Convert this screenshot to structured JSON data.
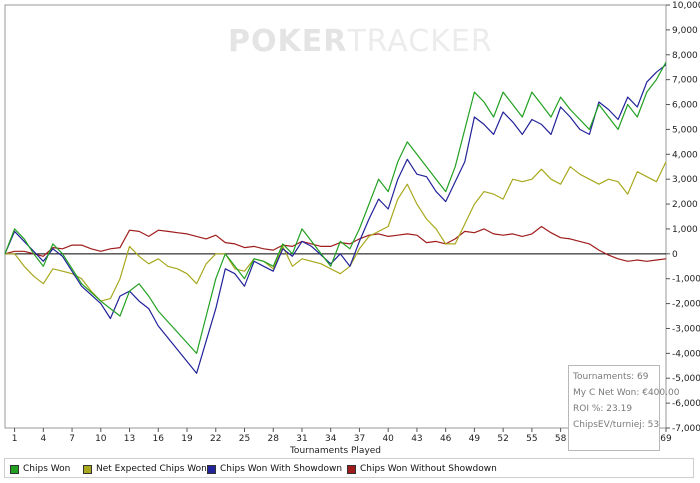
{
  "watermark": {
    "bold": "POKER",
    "light": "TRACKER"
  },
  "stats": {
    "tournaments": "Tournaments: 69",
    "net_won": "My C Net Won: €400.00",
    "roi": "ROI %: 23.19",
    "chipsev": "ChipsEV/turniej: 53"
  },
  "legend": {
    "chips_won": "Chips Won",
    "net_expected": "Net Expected Chips Won",
    "with_showdown": "Chips Won With Showdown",
    "without_showdown": "Chips Won Without Showdown"
  },
  "colors": {
    "chips_won": "#22a022",
    "net_expected": "#a8a81e",
    "with_showdown": "#22229a",
    "without_showdown": "#a01c1c"
  },
  "chart_data": {
    "type": "line",
    "xlabel": "Tournaments Played",
    "ylabel": "",
    "xlim": [
      0,
      69
    ],
    "ylim": [
      -7000,
      10000
    ],
    "x_ticks": [
      1,
      4,
      7,
      10,
      13,
      16,
      19,
      22,
      25,
      28,
      31,
      34,
      37,
      40,
      43,
      46,
      49,
      52,
      55,
      58,
      61,
      64,
      67,
      69
    ],
    "y_ticks": [
      -7000,
      -6000,
      -5000,
      -4000,
      -3000,
      -2000,
      -1000,
      0,
      1000,
      2000,
      3000,
      4000,
      5000,
      6000,
      7000,
      8000,
      9000,
      10000
    ],
    "y_tick_labels": [
      "-7,000",
      "-6,000",
      "-5,000",
      "-4,000",
      "-3,000",
      "-2,000",
      "-1,000",
      "0",
      "1,000",
      "2,000",
      "3,000",
      "4,000",
      "5,000",
      "6,000",
      "7,000",
      "8,000",
      "9,000",
      "10,000"
    ],
    "grid": false,
    "legend_position": "bottom",
    "series": [
      {
        "name": "Chips Won",
        "x": [
          0,
          1,
          2,
          3,
          4,
          5,
          6,
          8,
          10,
          11,
          12,
          13,
          14,
          15,
          16,
          20,
          21,
          22,
          23,
          24,
          25,
          26,
          27,
          28,
          29,
          30,
          31,
          32,
          34,
          35,
          36,
          37,
          38,
          39,
          40,
          41,
          42,
          43,
          44,
          45,
          46,
          47,
          48,
          49,
          50,
          51,
          52,
          53,
          54,
          55,
          56,
          57,
          58,
          59,
          60,
          61,
          62,
          63,
          64,
          65,
          66,
          67,
          68,
          69
        ],
        "y": [
          0,
          1000,
          600,
          0,
          -500,
          400,
          0,
          -1200,
          -1900,
          -2200,
          -2500,
          -1500,
          -1200,
          -1700,
          -2300,
          -4000,
          -2500,
          -1000,
          0,
          -500,
          -1000,
          -200,
          -300,
          -500,
          400,
          0,
          1000,
          500,
          -500,
          500,
          200,
          1000,
          2000,
          3000,
          2500,
          3700,
          4500,
          4000,
          3500,
          3000,
          2500,
          3500,
          5000,
          6500,
          6100,
          5500,
          6500,
          6000,
          5500,
          6500,
          6000,
          5500,
          6300,
          5800,
          5400,
          5000,
          6000,
          5500,
          5000,
          6000,
          5500,
          6500,
          7000,
          7700
        ]
      },
      {
        "name": "Net Expected Chips Won",
        "x": [
          0,
          1,
          2,
          3,
          4,
          5,
          6,
          7,
          8,
          9,
          10,
          11,
          12,
          13,
          14,
          15,
          16,
          17,
          18,
          19,
          20,
          21,
          22,
          23,
          24,
          25,
          26,
          27,
          28,
          29,
          30,
          31,
          32,
          33,
          34,
          35,
          36,
          37,
          38,
          39,
          40,
          41,
          42,
          43,
          44,
          45,
          46,
          47,
          48,
          49,
          50,
          51,
          52,
          53,
          54,
          55,
          56,
          57,
          58,
          59,
          60,
          61,
          62,
          63,
          64,
          65,
          66,
          67,
          68,
          69
        ],
        "y": [
          0,
          0,
          -500,
          -900,
          -1200,
          -600,
          -700,
          -800,
          -1000,
          -1500,
          -1900,
          -1800,
          -1000,
          300,
          -100,
          -400,
          -200,
          -500,
          -600,
          -800,
          -1200,
          -400,
          0,
          0,
          -600,
          -700,
          -200,
          -300,
          -600,
          300,
          -500,
          -200,
          -300,
          -400,
          -600,
          -800,
          -500,
          200,
          700,
          900,
          1100,
          2200,
          2800,
          2000,
          1400,
          1000,
          400,
          400,
          1200,
          2000,
          2500,
          2400,
          2200,
          3000,
          2900,
          3000,
          3400,
          3000,
          2800,
          3500,
          3200,
          3000,
          2800,
          3000,
          2900,
          2400,
          3300,
          3100,
          2900,
          3700
        ]
      },
      {
        "name": "Chips Won With Showdown",
        "x": [
          0,
          1,
          2,
          3,
          4,
          5,
          6,
          8,
          10,
          11,
          12,
          13,
          14,
          15,
          16,
          20,
          21,
          22,
          23,
          24,
          25,
          26,
          27,
          28,
          29,
          30,
          31,
          32,
          34,
          35,
          36,
          37,
          38,
          39,
          40,
          41,
          42,
          43,
          44,
          45,
          46,
          47,
          48,
          49,
          50,
          51,
          52,
          53,
          54,
          55,
          56,
          57,
          58,
          59,
          60,
          61,
          62,
          63,
          64,
          65,
          66,
          67,
          68,
          69
        ],
        "y": [
          0,
          900,
          500,
          100,
          -300,
          200,
          -100,
          -1300,
          -2000,
          -2600,
          -1700,
          -1500,
          -1900,
          -2200,
          -2900,
          -4800,
          -3500,
          -2200,
          -600,
          -800,
          -1300,
          -300,
          -500,
          -700,
          200,
          -100,
          500,
          300,
          -400,
          0,
          -500,
          500,
          1400,
          2200,
          1800,
          3000,
          3800,
          3200,
          3100,
          2500,
          2100,
          2900,
          3700,
          5500,
          5200,
          4800,
          5700,
          5300,
          4800,
          5400,
          5200,
          4800,
          5900,
          5500,
          5000,
          4800,
          6100,
          5800,
          5400,
          6300,
          5900,
          6900,
          7300,
          7600
        ]
      },
      {
        "name": "Chips Won Without Showdown",
        "x": [
          0,
          1,
          2,
          3,
          4,
          5,
          6,
          7,
          8,
          9,
          10,
          11,
          12,
          13,
          14,
          15,
          16,
          17,
          18,
          19,
          20,
          21,
          22,
          23,
          24,
          25,
          26,
          27,
          28,
          29,
          30,
          31,
          32,
          33,
          34,
          35,
          36,
          37,
          38,
          39,
          40,
          41,
          42,
          43,
          44,
          45,
          46,
          47,
          48,
          49,
          50,
          51,
          52,
          53,
          54,
          55,
          56,
          57,
          58,
          59,
          60,
          61,
          62,
          63,
          64,
          65,
          66,
          67,
          68,
          69
        ],
        "y": [
          0,
          100,
          100,
          0,
          -100,
          250,
          200,
          350,
          350,
          200,
          100,
          200,
          250,
          950,
          900,
          700,
          950,
          900,
          850,
          800,
          700,
          600,
          750,
          450,
          400,
          250,
          300,
          200,
          150,
          350,
          300,
          500,
          400,
          300,
          300,
          450,
          400,
          600,
          750,
          800,
          700,
          750,
          800,
          750,
          450,
          500,
          400,
          600,
          900,
          850,
          1000,
          800,
          750,
          800,
          700,
          800,
          1100,
          850,
          650,
          600,
          500,
          400,
          150,
          -50,
          -200,
          -300,
          -250,
          -300,
          -250,
          -200
        ]
      }
    ]
  }
}
